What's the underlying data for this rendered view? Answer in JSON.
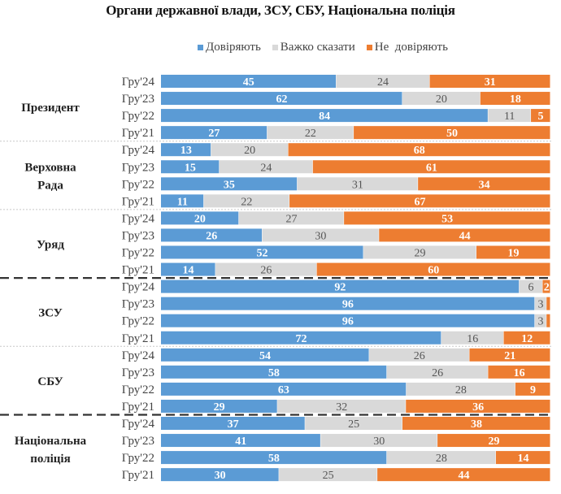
{
  "chart_data": {
    "type": "bar",
    "orientation": "horizontal",
    "stacked": true,
    "title": "Органи державної влади, ЗСУ, СБУ, Національна поліція",
    "legend": {
      "placement": "top"
    },
    "series_names": [
      "Довіряють",
      "Важко сказати",
      "Не  довіряють"
    ],
    "colors": [
      "#5b9bd5",
      "#d9d9d9",
      "#ed7d31"
    ],
    "groups": [
      {
        "label": "Президент",
        "rows": [
          {
            "period": "Гру'24",
            "values": [
              45,
              24,
              31
            ]
          },
          {
            "period": "Гру'23",
            "values": [
              62,
              20,
              18
            ]
          },
          {
            "period": "Гру'22",
            "values": [
              84,
              11,
              5
            ]
          },
          {
            "period": "Гру'21",
            "values": [
              27,
              22,
              50
            ]
          }
        ]
      },
      {
        "label": "Верховна Рада",
        "rows": [
          {
            "period": "Гру'24",
            "values": [
              13,
              20,
              68
            ]
          },
          {
            "period": "Гру'23",
            "values": [
              15,
              24,
              61
            ]
          },
          {
            "period": "Гру'22",
            "values": [
              35,
              31,
              34
            ]
          },
          {
            "period": "Гру'21",
            "values": [
              11,
              22,
              67
            ]
          }
        ]
      },
      {
        "label": "Уряд",
        "rows": [
          {
            "period": "Гру'24",
            "values": [
              20,
              27,
              53
            ]
          },
          {
            "period": "Гру'23",
            "values": [
              26,
              30,
              44
            ]
          },
          {
            "period": "Гру'22",
            "values": [
              52,
              29,
              19
            ]
          },
          {
            "period": "Гру'21",
            "values": [
              14,
              26,
              60
            ]
          }
        ]
      },
      {
        "label": "ЗСУ",
        "rows": [
          {
            "period": "Гру'24",
            "values": [
              92,
              6,
              2
            ]
          },
          {
            "period": "Гру'23",
            "values": [
              96,
              3,
              1
            ]
          },
          {
            "period": "Гру'22",
            "values": [
              96,
              3,
              1
            ]
          },
          {
            "period": "Гру'21",
            "values": [
              72,
              16,
              12
            ]
          }
        ]
      },
      {
        "label": "СБУ",
        "rows": [
          {
            "period": "Гру'24",
            "values": [
              54,
              26,
              21
            ]
          },
          {
            "period": "Гру'23",
            "values": [
              58,
              26,
              16
            ]
          },
          {
            "period": "Гру'22",
            "values": [
              63,
              28,
              9
            ]
          },
          {
            "period": "Гру'21",
            "values": [
              29,
              32,
              36
            ]
          }
        ]
      },
      {
        "label": "Національна поліція",
        "rows": [
          {
            "period": "Гру'24",
            "values": [
              37,
              25,
              38
            ]
          },
          {
            "period": "Гру'23",
            "values": [
              41,
              30,
              29
            ]
          },
          {
            "period": "Гру'22",
            "values": [
              58,
              28,
              14
            ]
          },
          {
            "period": "Гру'21",
            "values": [
              30,
              25,
              44
            ]
          }
        ]
      }
    ]
  }
}
